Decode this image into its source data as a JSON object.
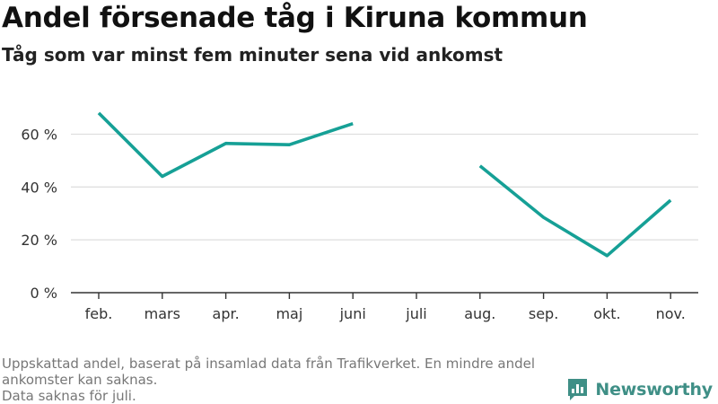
{
  "header": {
    "title": "Andel försenade tåg i Kiruna kommun",
    "subtitle": "Tåg som var minst fem minuter sena vid ankomst"
  },
  "footnote": {
    "line1": "Uppskattad andel, baserat på insamlad data från Trafikverket. En mindre andel ankomster kan saknas.",
    "line2": "Data saknas för juli."
  },
  "brand": {
    "name": "Newsworthy",
    "color": "#3f8f86",
    "icon": "newsworthy-logo-icon"
  },
  "chart_data": {
    "type": "line",
    "categories": [
      "feb.",
      "mars",
      "apr.",
      "maj",
      "juni",
      "juli",
      "aug.",
      "sep.",
      "okt.",
      "nov."
    ],
    "series": [
      {
        "values": [
          68,
          44,
          56.5,
          56,
          64,
          null,
          48,
          28.5,
          14,
          35
        ],
        "color": "#16a096"
      }
    ],
    "ylim": [
      0,
      70
    ],
    "yticks": [
      0,
      20,
      40,
      60
    ],
    "ytick_labels": [
      "0 %",
      "20 %",
      "40 %",
      "60 %"
    ],
    "grid": "horizontal",
    "legend": "none"
  }
}
